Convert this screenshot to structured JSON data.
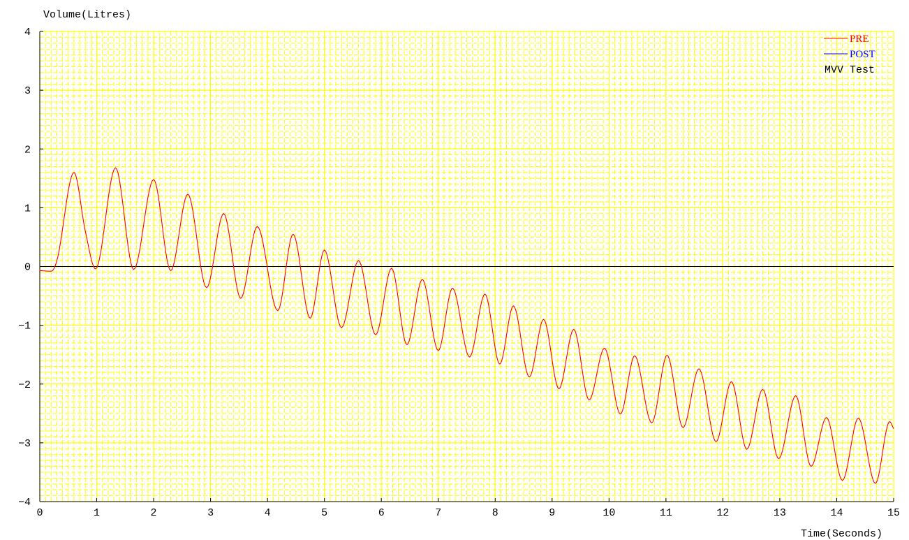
{
  "chart_data": {
    "type": "line",
    "ylabel": "Volume(Litres)",
    "xlabel": "Time(Seconds)",
    "annotation": "MVV Test",
    "xlim": [
      0,
      15
    ],
    "ylim": [
      -4,
      4
    ],
    "x_ticks": [
      0,
      1,
      2,
      3,
      4,
      5,
      6,
      7,
      8,
      9,
      10,
      11,
      12,
      13,
      14,
      15
    ],
    "y_ticks": [
      4,
      3,
      2,
      1,
      0,
      -1,
      -2,
      -3,
      -4
    ],
    "y_tick_labels": [
      "4",
      "3",
      "2",
      "1",
      "0",
      "−1",
      "−2",
      "−3",
      "−4"
    ],
    "grid": true,
    "grid_color": "#ffff00",
    "legend_position": "top-right",
    "legend": [
      {
        "name": "PRE",
        "color": "#ff0000"
      },
      {
        "name": "POST",
        "color": "#0000ff"
      }
    ],
    "series": [
      {
        "name": "PRE",
        "color": "#ff0000",
        "x": [
          0,
          0.2,
          0.3,
          0.6,
          0.8,
          0.98,
          1.33,
          1.65,
          2.0,
          2.3,
          2.6,
          2.93,
          3.23,
          3.53,
          3.82,
          4.18,
          4.45,
          4.75,
          5.0,
          5.3,
          5.6,
          5.9,
          6.18,
          6.45,
          6.72,
          7.0,
          7.25,
          7.55,
          7.82,
          8.08,
          8.32,
          8.6,
          8.85,
          9.12,
          9.38,
          9.65,
          9.92,
          10.2,
          10.45,
          10.75,
          11.02,
          11.3,
          11.58,
          11.88,
          12.15,
          12.42,
          12.7,
          12.98,
          13.28,
          13.55,
          13.82,
          14.1,
          14.38,
          14.68,
          14.93,
          15.0
        ],
        "values": [
          -0.07,
          -0.08,
          0.1,
          1.6,
          0.6,
          -0.04,
          1.68,
          -0.05,
          1.48,
          -0.07,
          1.23,
          -0.36,
          0.9,
          -0.54,
          0.68,
          -0.75,
          0.55,
          -0.88,
          0.28,
          -1.04,
          0.1,
          -1.16,
          -0.03,
          -1.33,
          -0.22,
          -1.43,
          -0.37,
          -1.54,
          -0.47,
          -1.66,
          -0.67,
          -1.88,
          -0.9,
          -2.08,
          -1.07,
          -2.27,
          -1.39,
          -2.51,
          -1.52,
          -2.66,
          -1.51,
          -2.74,
          -1.74,
          -2.98,
          -1.96,
          -3.11,
          -2.09,
          -3.27,
          -2.2,
          -3.4,
          -2.57,
          -3.64,
          -2.58,
          -3.69,
          -2.64,
          -2.76
        ]
      }
    ]
  }
}
